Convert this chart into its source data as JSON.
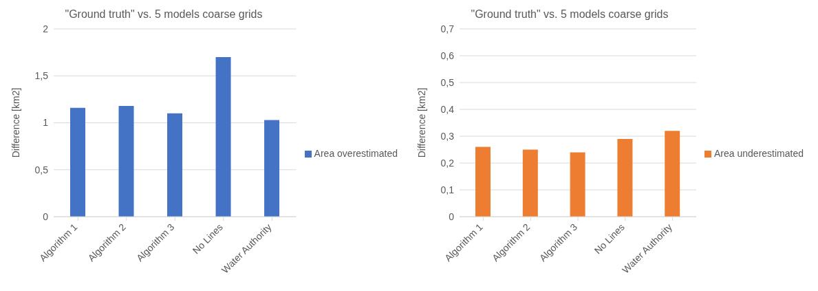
{
  "chart_data": [
    {
      "type": "bar",
      "title": "\"Ground truth\" vs. 5 models coarse grids",
      "ylabel": "Difference [km2]",
      "categories": [
        "Algorithm 1",
        "Algorithm 2",
        "Algorithm 3",
        "No Lines",
        "Water Authority"
      ],
      "series": [
        {
          "name": "Area overestimated",
          "color": "#4472c4",
          "values": [
            1.16,
            1.18,
            1.1,
            1.7,
            1.03
          ]
        }
      ],
      "ylim": [
        0,
        2
      ],
      "yticks": [
        0,
        {
          "value": 0.5,
          "label": "0,5"
        },
        1,
        {
          "value": 1.5,
          "label": "1,5"
        },
        2
      ],
      "grid": "y",
      "legend": "right"
    },
    {
      "type": "bar",
      "title": "\"Ground truth\" vs. 5 models coarse grids",
      "ylabel": "Difference [km2]",
      "categories": [
        "Algorithm 1",
        "Algorithm 2",
        "Algorithm 3",
        "No Lines",
        "Water Authority"
      ],
      "series": [
        {
          "name": "Area underestimated",
          "color": "#ed7d31",
          "values": [
            0.26,
            0.25,
            0.24,
            0.29,
            0.32
          ]
        }
      ],
      "ylim": [
        0,
        0.7
      ],
      "yticks": [
        0,
        {
          "value": 0.1,
          "label": "0,1"
        },
        {
          "value": 0.2,
          "label": "0,2"
        },
        {
          "value": 0.3,
          "label": "0,3"
        },
        {
          "value": 0.4,
          "label": "0,4"
        },
        {
          "value": 0.5,
          "label": "0,5"
        },
        {
          "value": 0.6,
          "label": "0,6"
        },
        {
          "value": 0.7,
          "label": "0,7"
        }
      ],
      "grid": "y",
      "legend": "right"
    }
  ]
}
